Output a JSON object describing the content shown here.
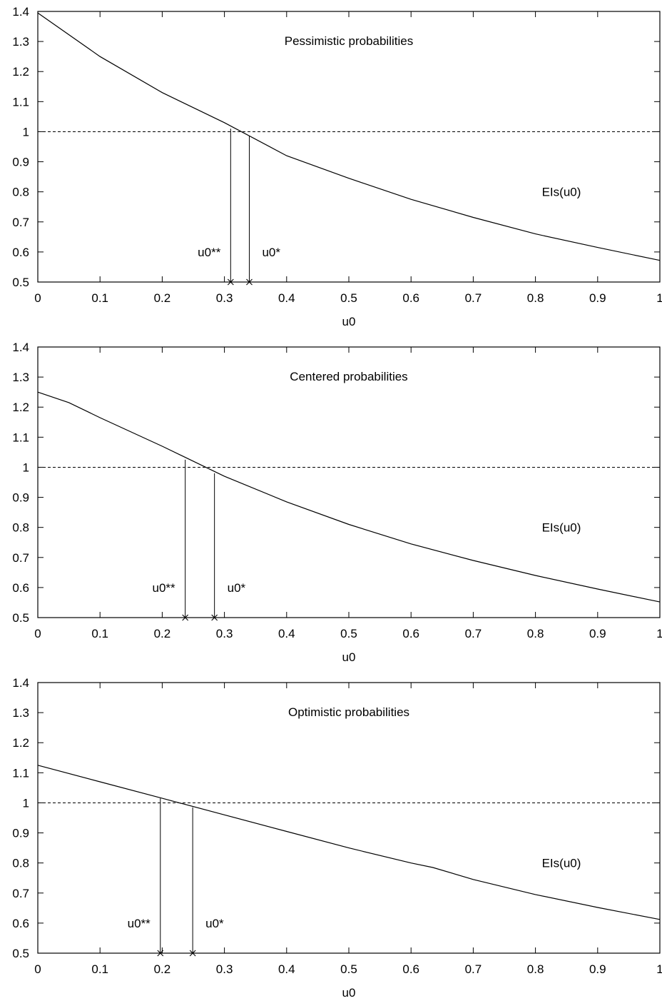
{
  "chart_data": [
    {
      "type": "line",
      "title": "Pessimistic probabilities",
      "xlabel": "u0",
      "ylabel": "",
      "xlim": [
        0,
        1
      ],
      "ylim": [
        0.5,
        1.4
      ],
      "x_ticks": [
        "0",
        "0.1",
        "0.2",
        "0.3",
        "0.4",
        "0.5",
        "0.6",
        "0.7",
        "0.8",
        "0.9",
        "1"
      ],
      "y_ticks": [
        "0.5",
        "0.6",
        "0.7",
        "0.8",
        "0.9",
        "1",
        "1.1",
        "1.2",
        "1.3",
        "1.4"
      ],
      "grid": false,
      "series": [
        {
          "name": "EIs(u0)",
          "x": [
            0,
            0.1,
            0.2,
            0.3,
            0.4,
            0.5,
            0.6,
            0.7,
            0.8,
            0.9,
            1.0
          ],
          "y": [
            1.395,
            1.25,
            1.13,
            1.03,
            0.92,
            0.845,
            0.775,
            0.715,
            0.66,
            0.615,
            0.572
          ]
        }
      ],
      "reference_line": {
        "y": 1,
        "style": "dashed"
      },
      "markers": [
        {
          "label": "u0**",
          "x": 0.31,
          "y_top": 1.01
        },
        {
          "label": "u0*",
          "x": 0.34,
          "y_top": 0.985
        }
      ],
      "curve_label": "EIs(u0)"
    },
    {
      "type": "line",
      "title": "Centered probabilities",
      "xlabel": "u0",
      "ylabel": "",
      "xlim": [
        0,
        1
      ],
      "ylim": [
        0.5,
        1.4
      ],
      "x_ticks": [
        "0",
        "0.1",
        "0.2",
        "0.3",
        "0.4",
        "0.5",
        "0.6",
        "0.7",
        "0.8",
        "0.9",
        "1"
      ],
      "y_ticks": [
        "0.5",
        "0.6",
        "0.7",
        "0.8",
        "0.9",
        "1",
        "1.1",
        "1.2",
        "1.3",
        "1.4"
      ],
      "grid": false,
      "series": [
        {
          "name": "EIs(u0)",
          "x": [
            0,
            0.05,
            0.1,
            0.2,
            0.3,
            0.4,
            0.5,
            0.6,
            0.7,
            0.8,
            0.9,
            1.0
          ],
          "y": [
            1.25,
            1.215,
            1.165,
            1.07,
            0.97,
            0.885,
            0.81,
            0.745,
            0.69,
            0.64,
            0.595,
            0.552
          ]
        }
      ],
      "reference_line": {
        "y": 1,
        "style": "dashed"
      },
      "markers": [
        {
          "label": "u0**",
          "x": 0.237,
          "y_top": 1.025
        },
        {
          "label": "u0*",
          "x": 0.284,
          "y_top": 0.98
        }
      ],
      "curve_label": "EIs(u0)"
    },
    {
      "type": "line",
      "title": "Optimistic probabilities",
      "xlabel": "u0",
      "ylabel": "",
      "xlim": [
        0,
        1
      ],
      "ylim": [
        0.5,
        1.4
      ],
      "x_ticks": [
        "0",
        "0.1",
        "0.2",
        "0.3",
        "0.4",
        "0.5",
        "0.6",
        "0.7",
        "0.8",
        "0.9",
        "1"
      ],
      "y_ticks": [
        "0.5",
        "0.6",
        "0.7",
        "0.8",
        "0.9",
        "1",
        "1.1",
        "1.2",
        "1.3",
        "1.4"
      ],
      "grid": false,
      "series": [
        {
          "name": "EIs(u0)",
          "x": [
            0,
            0.1,
            0.2,
            0.3,
            0.4,
            0.5,
            0.6,
            0.635,
            0.7,
            0.8,
            0.9,
            1.0
          ],
          "y": [
            1.125,
            1.07,
            1.015,
            0.96,
            0.905,
            0.85,
            0.8,
            0.785,
            0.745,
            0.695,
            0.652,
            0.612
          ]
        }
      ],
      "reference_line": {
        "y": 1,
        "style": "dashed"
      },
      "markers": [
        {
          "label": "u0**",
          "x": 0.197,
          "y_top": 1.015
        },
        {
          "label": "u0*",
          "x": 0.249,
          "y_top": 0.985
        }
      ],
      "curve_label": "EIs(u0)"
    }
  ]
}
